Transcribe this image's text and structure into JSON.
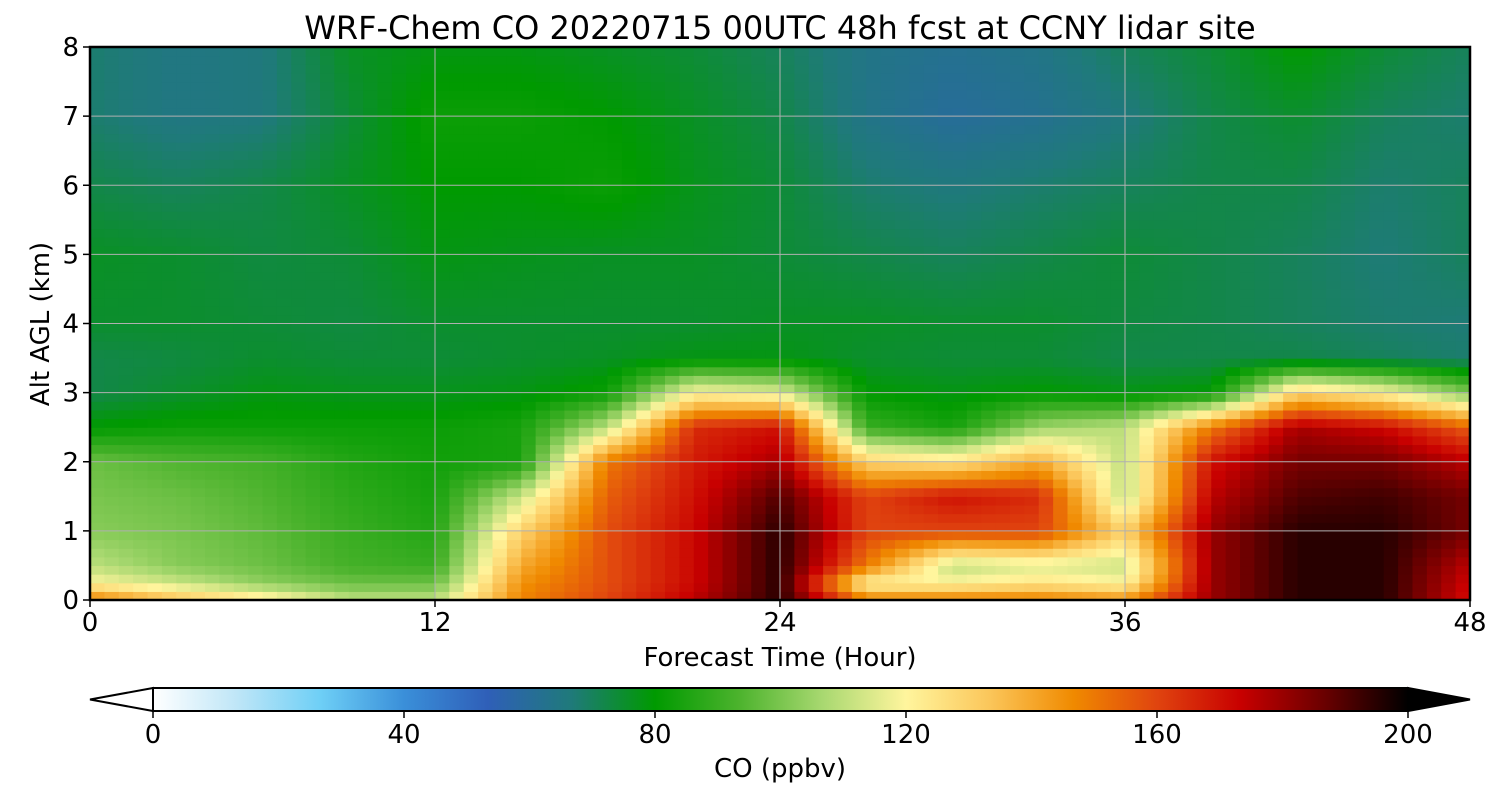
{
  "chart_data": {
    "type": "heatmap",
    "title": "WRF-Chem CO  20220715 00UTC 48h fcst at CCNY lidar site",
    "xlabel": "Forecast Time (Hour)",
    "ylabel": "Alt AGL (km)",
    "xlim": [
      0,
      48
    ],
    "ylim": [
      0,
      8
    ],
    "x_ticks": [
      "0",
      "12",
      "24",
      "36",
      "48"
    ],
    "y_ticks": [
      "0",
      "1",
      "2",
      "3",
      "4",
      "5",
      "6",
      "7",
      "8"
    ],
    "grid": true,
    "colorbar": {
      "label": "CO  (ppbv)",
      "ticks": [
        "0",
        "40",
        "80",
        "120",
        "160",
        "200"
      ],
      "range": [
        0,
        200
      ],
      "extend": "both",
      "colors": [
        "#ffffff",
        "#bfe6f7",
        "#6ecff6",
        "#3a8fd9",
        "#2f5fb8",
        "#1f7a7a",
        "#009a00",
        "#4cb32d",
        "#a8d870",
        "#fff59d",
        "#fbc65a",
        "#f08a00",
        "#e0440f",
        "#c80000",
        "#6a0000",
        "#000000"
      ]
    },
    "x": [
      0,
      3,
      6,
      9,
      12,
      15,
      18,
      21,
      24,
      27,
      30,
      33,
      36,
      39,
      42,
      45,
      48
    ],
    "y": [
      0,
      0.25,
      0.5,
      1,
      1.5,
      2,
      2.5,
      3,
      3.5,
      4,
      5,
      6,
      7,
      8
    ],
    "values": [
      [
        150,
        135,
        125,
        110,
        110,
        148,
        160,
        175,
        195,
        150,
        150,
        150,
        145,
        180,
        195,
        195,
        170
      ],
      [
        120,
        112,
        103,
        98,
        98,
        145,
        158,
        172,
        195,
        120,
        120,
        125,
        120,
        180,
        195,
        195,
        172
      ],
      [
        110,
        102,
        98,
        92,
        90,
        140,
        158,
        172,
        195,
        150,
        110,
        115,
        112,
        180,
        195,
        195,
        175
      ],
      [
        102,
        100,
        96,
        90,
        86,
        130,
        158,
        172,
        195,
        160,
        160,
        160,
        130,
        180,
        195,
        195,
        185
      ],
      [
        100,
        98,
        94,
        88,
        84,
        112,
        155,
        170,
        190,
        160,
        170,
        165,
        110,
        175,
        190,
        192,
        185
      ],
      [
        98,
        94,
        92,
        86,
        83,
        84,
        150,
        168,
        178,
        130,
        125,
        140,
        110,
        170,
        185,
        185,
        175
      ],
      [
        80,
        82,
        82,
        82,
        82,
        84,
        110,
        165,
        170,
        90,
        84,
        105,
        110,
        150,
        178,
        172,
        155
      ],
      [
        72,
        75,
        78,
        77,
        77,
        78,
        82,
        120,
        115,
        80,
        78,
        80,
        78,
        80,
        130,
        120,
        100
      ],
      [
        72,
        73,
        75,
        74,
        74,
        75,
        76,
        78,
        78,
        75,
        74,
        74,
        72,
        72,
        72,
        70,
        68
      ],
      [
        75,
        75,
        74,
        73,
        75,
        75,
        75,
        75,
        76,
        76,
        75,
        75,
        73,
        72,
        70,
        68,
        67
      ],
      [
        76,
        75,
        73,
        74,
        78,
        77,
        76,
        76,
        74,
        72,
        70,
        72,
        74,
        72,
        70,
        67,
        70
      ],
      [
        72,
        70,
        72,
        76,
        80,
        80,
        82,
        77,
        74,
        68,
        66,
        68,
        70,
        72,
        72,
        68,
        70
      ],
      [
        68,
        65,
        66,
        74,
        82,
        82,
        80,
        76,
        72,
        64,
        60,
        62,
        66,
        72,
        75,
        70,
        68
      ],
      [
        68,
        65,
        66,
        76,
        78,
        78,
        76,
        74,
        70,
        64,
        62,
        64,
        70,
        74,
        80,
        74,
        70
      ]
    ]
  }
}
